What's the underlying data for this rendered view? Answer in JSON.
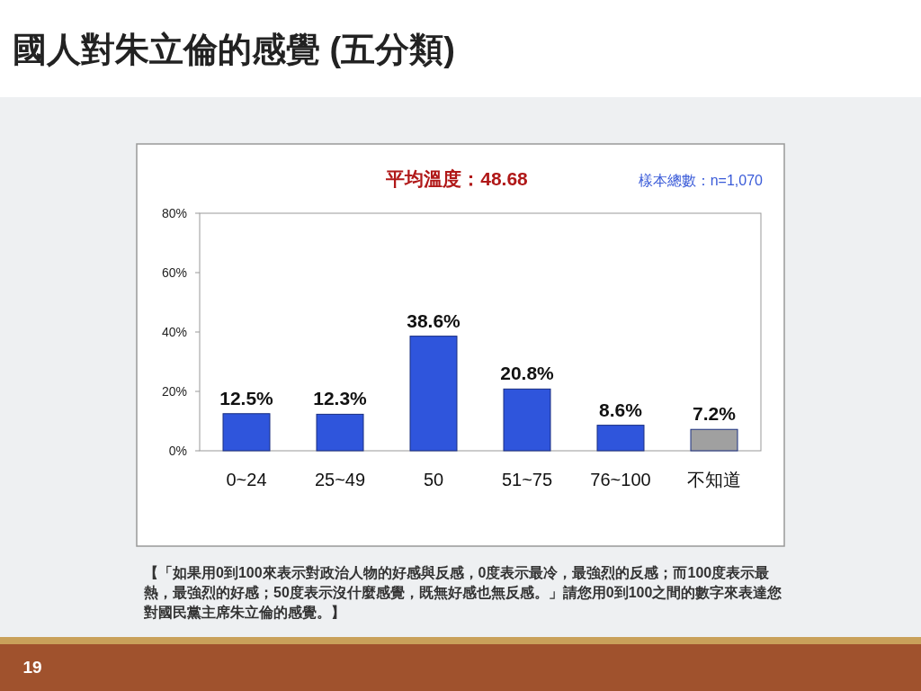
{
  "chart_data": {
    "type": "bar",
    "title": "國人對朱立倫的感覺 (五分類)",
    "categories": [
      "0~24",
      "25~49",
      "50",
      "51~75",
      "76~100",
      "不知道"
    ],
    "values": [
      12.5,
      12.3,
      38.6,
      20.8,
      8.6,
      7.2
    ],
    "colors": [
      "#2f55dc",
      "#2f55dc",
      "#2f55dc",
      "#2f55dc",
      "#2f55dc",
      "#a0a0a0"
    ],
    "value_labels": [
      "12.5%",
      "12.3%",
      "38.6%",
      "20.8%",
      "8.6%",
      "7.2%"
    ],
    "ylim": [
      0,
      80
    ],
    "yticks": [
      {
        "value": 0,
        "label": "0%"
      },
      {
        "value": 20,
        "label": "20%"
      },
      {
        "value": 40,
        "label": "40%"
      },
      {
        "value": 60,
        "label": "60%"
      },
      {
        "value": 80,
        "label": "80%"
      }
    ],
    "grid": false,
    "annotations": [
      "平均溫度：48.68",
      "樣本總數：n=1,070",
      "【「如果用0到100來表示對政治人物的好感與反感，0度表示最冷，最強烈的反感；而100度表示最熱，最強烈的好感；50度表示沒什麼感覺，既無好感也無反感。」請您用0到100之間的數字來表達您對國民黨主席朱立倫的感覺。】",
      "19"
    ]
  }
}
